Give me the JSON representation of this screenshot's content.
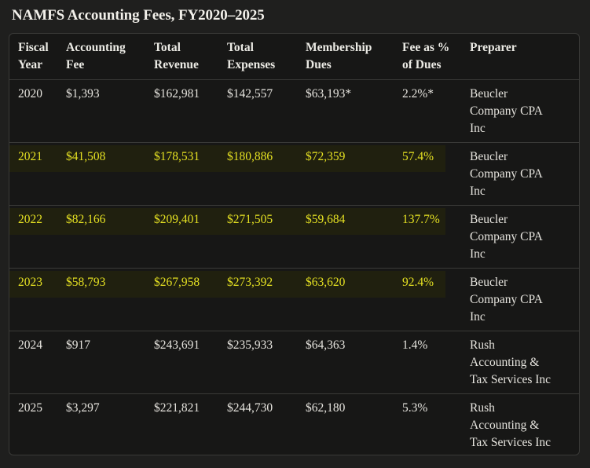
{
  "title": "NAMFS Accounting Fees, FY2020–2025",
  "colors": {
    "background": "#1f1f1e",
    "highlight_text": "#e4e022",
    "highlight_bg": "#20200f"
  },
  "table": {
    "headers": [
      [
        "Fiscal",
        "Year"
      ],
      [
        "Accounting",
        "Fee"
      ],
      [
        "Total",
        "Revenue"
      ],
      [
        "Total",
        "Expenses"
      ],
      [
        "Membership",
        "Dues"
      ],
      [
        "Fee as %",
        "of Dues"
      ],
      [
        "Preparer",
        ""
      ]
    ],
    "rows": [
      {
        "year": "2020",
        "fee": "$1,393",
        "revenue": "$162,981",
        "expenses": "$142,557",
        "dues": "$63,193*",
        "pct": "2.2%*",
        "preparer": [
          "Beucler",
          "Company CPA",
          "Inc"
        ],
        "highlight": false
      },
      {
        "year": "2021",
        "fee": "$41,508",
        "revenue": "$178,531",
        "expenses": "$180,886",
        "dues": "$72,359",
        "pct": "57.4%",
        "preparer": [
          "Beucler",
          "Company CPA",
          "Inc"
        ],
        "highlight": true
      },
      {
        "year": "2022",
        "fee": "$82,166",
        "revenue": "$209,401",
        "expenses": "$271,505",
        "dues": "$59,684",
        "pct": "137.7%",
        "preparer": [
          "Beucler",
          "Company CPA",
          "Inc"
        ],
        "highlight": true
      },
      {
        "year": "2023",
        "fee": "$58,793",
        "revenue": "$267,958",
        "expenses": "$273,392",
        "dues": "$63,620",
        "pct": "92.4%",
        "preparer": [
          "Beucler",
          "Company CPA",
          "Inc"
        ],
        "highlight": true
      },
      {
        "year": "2024",
        "fee": "$917",
        "revenue": "$243,691",
        "expenses": "$235,933",
        "dues": "$64,363",
        "pct": "1.4%",
        "preparer": [
          "Rush",
          "Accounting &",
          "Tax Services Inc"
        ],
        "highlight": false
      },
      {
        "year": "2025",
        "fee": "$3,297",
        "revenue": "$221,821",
        "expenses": "$244,730",
        "dues": "$62,180",
        "pct": "5.3%",
        "preparer": [
          "Rush",
          "Accounting &",
          "Tax Services Inc"
        ],
        "highlight": false
      }
    ]
  }
}
